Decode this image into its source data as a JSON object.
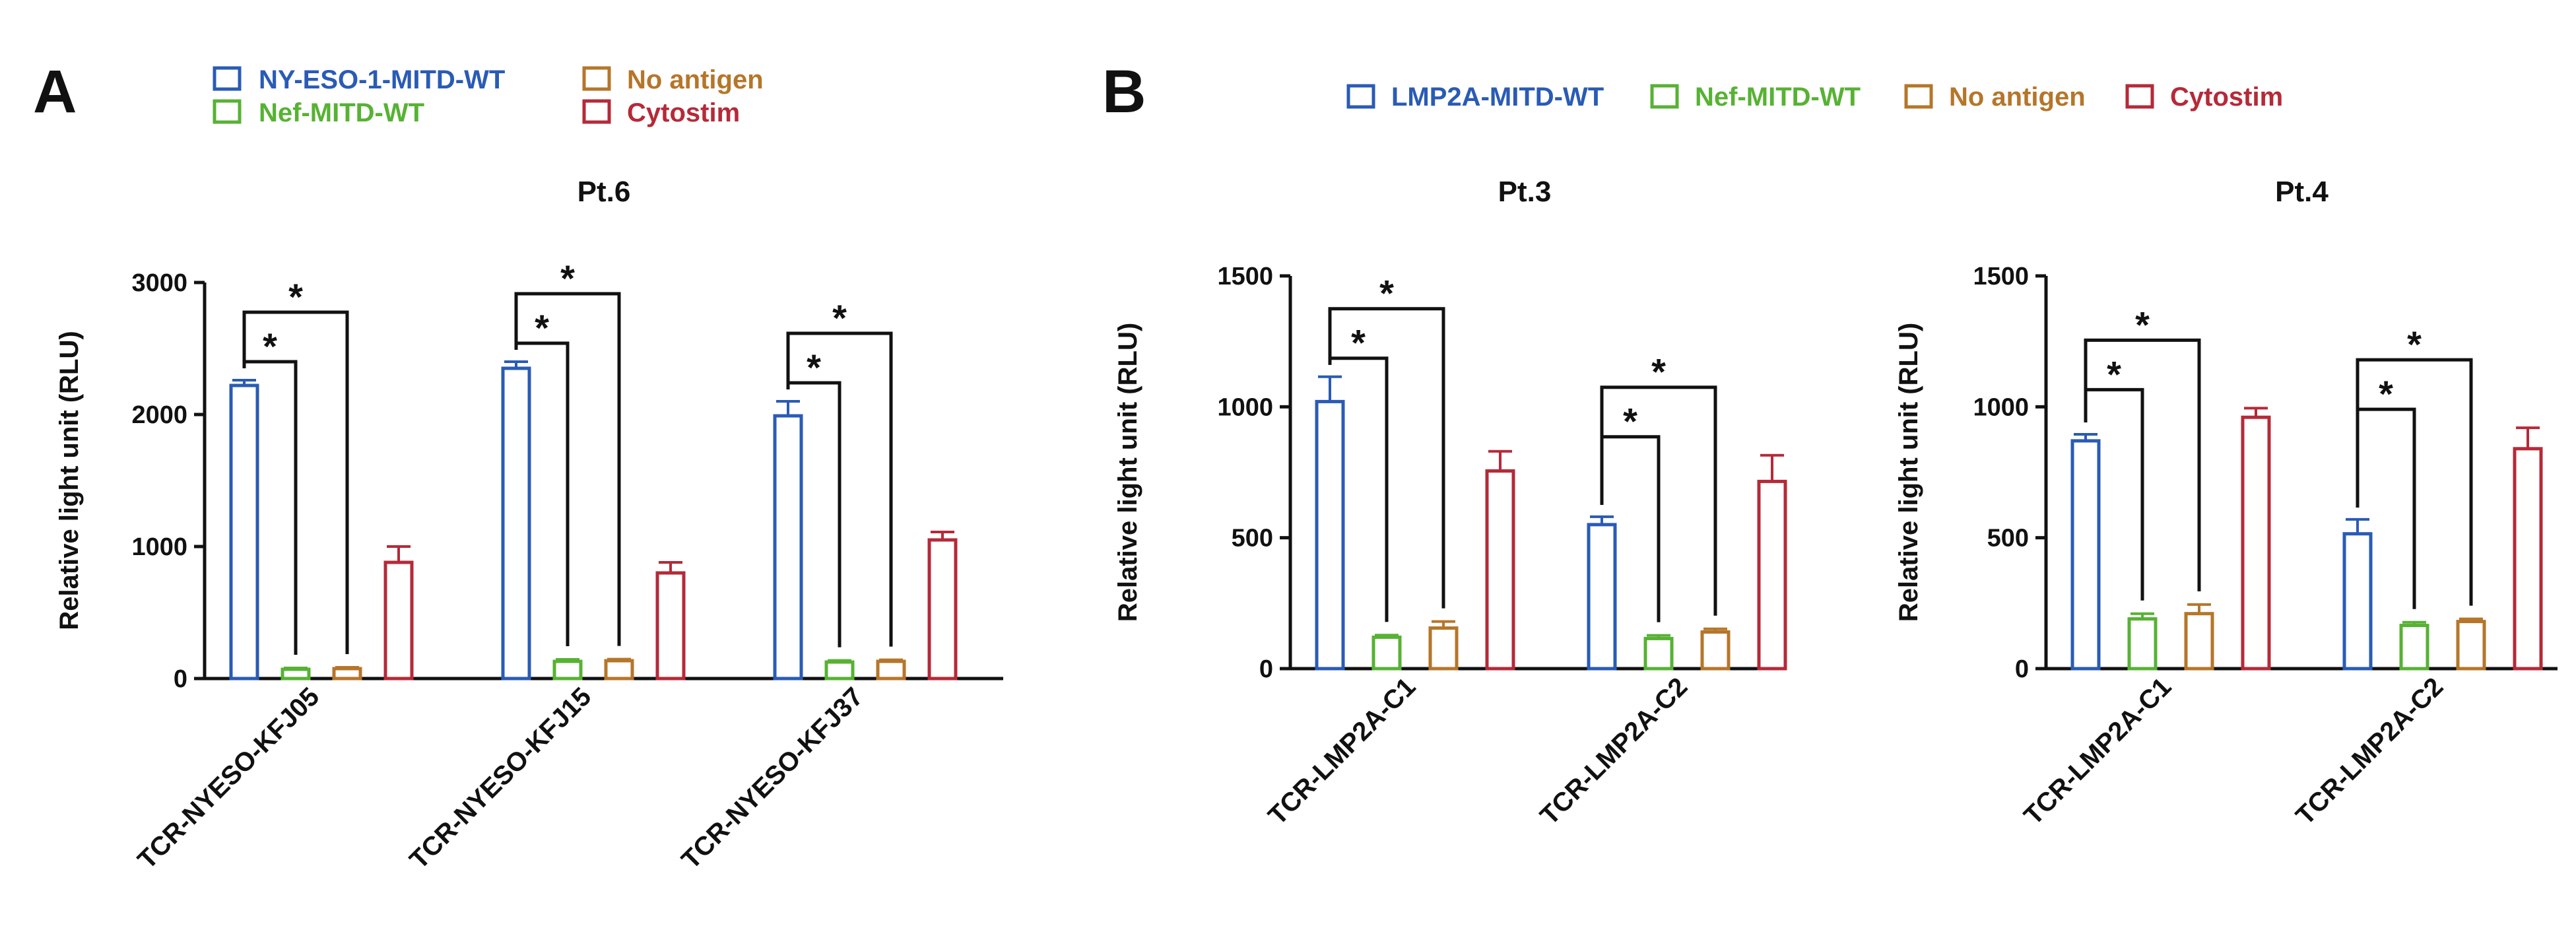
{
  "panels": [
    {
      "letter": "A",
      "legend": [
        {
          "name": "NY-ESO-1-MITD-WT",
          "color": "#2a5bb5"
        },
        {
          "name": "Nef-MITD-WT",
          "color": "#57b234"
        },
        {
          "name": "No antigen",
          "color": "#b5762a"
        },
        {
          "name": "Cytostim",
          "color": "#b52a38"
        }
      ]
    },
    {
      "letter": "B",
      "legend": [
        {
          "name": "LMP2A-MITD-WT",
          "color": "#2a5bb5"
        },
        {
          "name": "Nef-MITD-WT",
          "color": "#57b234"
        },
        {
          "name": "No antigen",
          "color": "#b5762a"
        },
        {
          "name": "Cytostim",
          "color": "#b52a38"
        }
      ]
    }
  ],
  "chart_data": [
    {
      "type": "bar",
      "title": "Pt.6",
      "ylabel": "Relative light unit (RLU)",
      "xlabel": "",
      "ylim": [
        0,
        3000
      ],
      "yticks": [
        0,
        1000,
        2000,
        3000
      ],
      "categories": [
        "TCR-NYESO-KFJ05",
        "TCR-NYESO-KFJ15",
        "TCR-NYESO-KFJ37"
      ],
      "series": [
        {
          "name": "NY-ESO-1-MITD-WT",
          "color": "#2a5bb5",
          "values": [
            2220,
            2350,
            1990
          ],
          "errors": [
            40,
            50,
            110
          ]
        },
        {
          "name": "Nef-MITD-WT",
          "color": "#57b234",
          "values": [
            70,
            130,
            125
          ],
          "errors": [
            10,
            15,
            12
          ]
        },
        {
          "name": "No antigen",
          "color": "#b5762a",
          "values": [
            75,
            135,
            130
          ],
          "errors": [
            10,
            12,
            12
          ]
        },
        {
          "name": "Cytostim",
          "color": "#b52a38",
          "values": [
            880,
            800,
            1050
          ],
          "errors": [
            120,
            80,
            60
          ]
        }
      ],
      "significance": [
        {
          "category": 0,
          "from": 0,
          "to": 1,
          "label": "*"
        },
        {
          "category": 0,
          "from": 0,
          "to": 2,
          "label": "*"
        },
        {
          "category": 1,
          "from": 0,
          "to": 1,
          "label": "*"
        },
        {
          "category": 1,
          "from": 0,
          "to": 2,
          "label": "*"
        },
        {
          "category": 2,
          "from": 0,
          "to": 1,
          "label": "*"
        },
        {
          "category": 2,
          "from": 0,
          "to": 2,
          "label": "*"
        }
      ]
    },
    {
      "type": "bar",
      "title": "Pt.3",
      "ylabel": "Relative light unit (RLU)",
      "xlabel": "",
      "ylim": [
        0,
        1500
      ],
      "yticks": [
        0,
        500,
        1000,
        1500
      ],
      "categories": [
        "TCR-LMP2A-C1",
        "TCR-LMP2A-C2"
      ],
      "series": [
        {
          "name": "LMP2A-MITD-WT",
          "color": "#2a5bb5",
          "values": [
            1020,
            550
          ],
          "errors": [
            95,
            30
          ]
        },
        {
          "name": "Nef-MITD-WT",
          "color": "#57b234",
          "values": [
            120,
            115
          ],
          "errors": [
            8,
            12
          ]
        },
        {
          "name": "No antigen",
          "color": "#b5762a",
          "values": [
            155,
            140
          ],
          "errors": [
            25,
            12
          ]
        },
        {
          "name": "Cytostim",
          "color": "#b52a38",
          "values": [
            755,
            715
          ],
          "errors": [
            75,
            100
          ]
        }
      ],
      "significance": [
        {
          "category": 0,
          "from": 0,
          "to": 1,
          "label": "*"
        },
        {
          "category": 0,
          "from": 0,
          "to": 2,
          "label": "*"
        },
        {
          "category": 1,
          "from": 0,
          "to": 1,
          "label": "*"
        },
        {
          "category": 1,
          "from": 0,
          "to": 2,
          "label": "*"
        }
      ]
    },
    {
      "type": "bar",
      "title": "Pt.4",
      "ylabel": "Relative light unit (RLU)",
      "xlabel": "",
      "ylim": [
        0,
        1500
      ],
      "yticks": [
        0,
        500,
        1000,
        1500
      ],
      "categories": [
        "TCR-LMP2A-C1",
        "TCR-LMP2A-C2"
      ],
      "series": [
        {
          "name": "LMP2A-MITD-WT",
          "color": "#2a5bb5",
          "values": [
            870,
            515
          ],
          "errors": [
            25,
            55
          ]
        },
        {
          "name": "Nef-MITD-WT",
          "color": "#57b234",
          "values": [
            190,
            165
          ],
          "errors": [
            20,
            12
          ]
        },
        {
          "name": "No antigen",
          "color": "#b5762a",
          "values": [
            210,
            180
          ],
          "errors": [
            35,
            10
          ]
        },
        {
          "name": "Cytostim",
          "color": "#b52a38",
          "values": [
            960,
            840
          ],
          "errors": [
            35,
            80
          ]
        }
      ],
      "significance": [
        {
          "category": 0,
          "from": 0,
          "to": 1,
          "label": "*"
        },
        {
          "category": 0,
          "from": 0,
          "to": 2,
          "label": "*"
        },
        {
          "category": 1,
          "from": 0,
          "to": 1,
          "label": "*"
        },
        {
          "category": 1,
          "from": 0,
          "to": 2,
          "label": "*"
        }
      ]
    }
  ]
}
